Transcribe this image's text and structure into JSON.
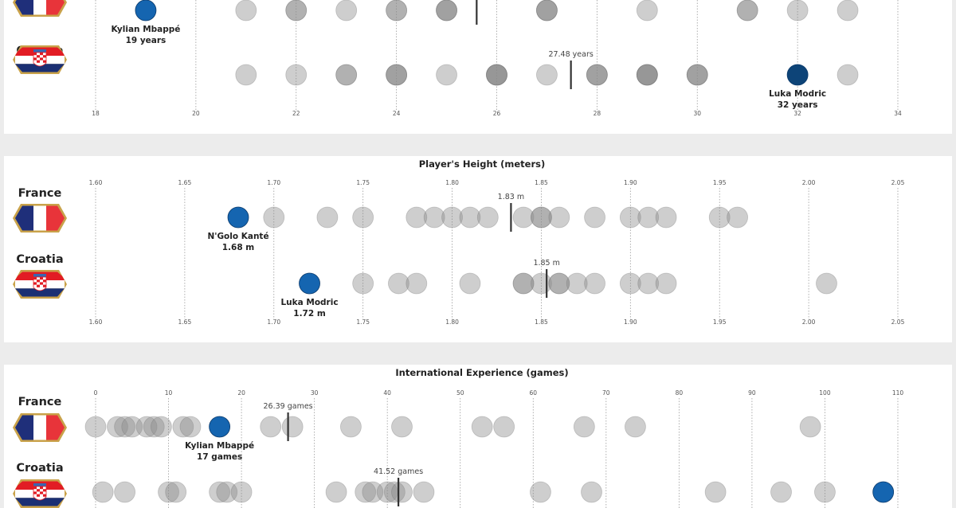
{
  "colors": {
    "highlight": "#1565b0",
    "highlight_dark": "#0d4478",
    "point_fill": "#8a8a8a",
    "avg_line": "#333333",
    "france_blue": "#1f2f7a",
    "france_red": "#e8343a",
    "croatia_red": "#e21c24",
    "croatia_blue": "#1b2f73",
    "flag_border": "#c9a24a"
  },
  "chart_data": [
    {
      "type": "scatter",
      "title": "",
      "unit": "years",
      "xlim": [
        18,
        34
      ],
      "tick_values": [
        18,
        20,
        22,
        24,
        26,
        28,
        30,
        32,
        34
      ],
      "series": [
        {
          "name": "France",
          "values": [
            21,
            22,
            22,
            23,
            24,
            24,
            25,
            25,
            25,
            27,
            27,
            27,
            29,
            31,
            31,
            32,
            33
          ],
          "average_label": "",
          "average_value": 25.6,
          "highlight": {
            "label": "Kylian Mbappé",
            "value_label": "19 years",
            "value": 19
          }
        },
        {
          "name": "Croatia",
          "values": [
            21,
            22,
            23,
            23,
            24,
            24,
            24,
            25,
            26,
            26,
            26,
            26,
            27,
            28,
            28,
            28,
            29,
            29,
            29,
            29,
            30,
            30,
            30,
            33
          ],
          "average_label": "27.48 years",
          "average_value": 27.48,
          "highlight": {
            "label": "Luka Modric",
            "value_label": "32 years",
            "value": 32
          }
        }
      ]
    },
    {
      "type": "scatter",
      "title": "Player's Height (meters)",
      "unit": "m",
      "xlim": [
        1.6,
        2.05
      ],
      "tick_values": [
        1.6,
        1.65,
        1.7,
        1.75,
        1.8,
        1.85,
        1.9,
        1.95,
        2.0,
        2.05
      ],
      "tick_labels": [
        "1.60",
        "1.65",
        "1.70",
        "1.75",
        "1.80",
        "1.85",
        "1.90",
        "1.95",
        "2.00",
        "2.05"
      ],
      "series": [
        {
          "name": "France",
          "values": [
            1.7,
            1.73,
            1.75,
            1.78,
            1.79,
            1.8,
            1.81,
            1.82,
            1.84,
            1.85,
            1.85,
            1.86,
            1.88,
            1.9,
            1.91,
            1.92,
            1.95,
            1.96
          ],
          "average_label": "1.83 m",
          "average_value": 1.833,
          "highlight": {
            "label": "N'Golo Kanté",
            "value_label": "1.68 m",
            "value": 1.68
          }
        },
        {
          "name": "Croatia",
          "values": [
            1.75,
            1.77,
            1.78,
            1.81,
            1.84,
            1.84,
            1.85,
            1.86,
            1.86,
            1.87,
            1.88,
            1.9,
            1.91,
            1.92,
            2.01
          ],
          "average_label": "1.85 m",
          "average_value": 1.853,
          "highlight": {
            "label": "Luka Modric",
            "value_label": "1.72 m",
            "value": 1.72
          }
        }
      ]
    },
    {
      "type": "scatter",
      "title": "International Experience (games)",
      "unit": "games",
      "xlim": [
        0,
        110
      ],
      "tick_values": [
        0,
        10,
        20,
        30,
        40,
        50,
        60,
        70,
        80,
        90,
        100,
        110
      ],
      "series": [
        {
          "name": "France",
          "values": [
            0,
            3,
            4,
            5,
            7,
            8,
            9,
            12,
            13,
            24,
            27,
            35,
            42,
            53,
            56,
            67,
            74,
            98
          ],
          "average_label": "26.39 games",
          "average_value": 26.39,
          "highlight": {
            "label": "Kylian Mbappé",
            "value_label": "17 games",
            "value": 17
          }
        },
        {
          "name": "Croatia",
          "values": [
            1,
            4,
            10,
            11,
            17,
            18,
            20,
            33,
            37,
            38,
            40,
            41,
            42,
            45,
            61,
            68,
            85,
            94,
            100
          ],
          "average_label": "41.52 games",
          "average_value": 41.52,
          "highlight": {
            "label": "",
            "value_label": "",
            "value": 108
          }
        }
      ]
    }
  ]
}
